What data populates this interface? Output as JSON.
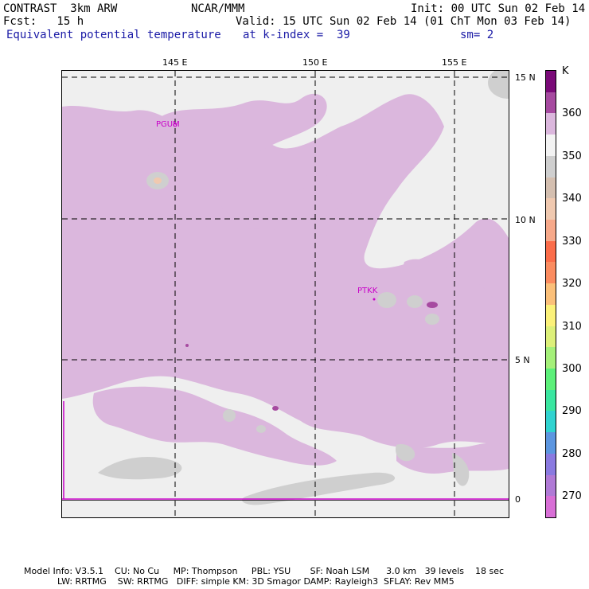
{
  "header": {
    "model": "CONTRAST  3km ARW",
    "fcst": "Fcst:   15 h",
    "org": "NCAR/MMM",
    "init": "Init: 00 UTC Sun 02 Feb 14",
    "valid": "Valid: 15 UTC Sun 02 Feb 14 (01 ChT Mon 03 Feb 14)",
    "field": "Equivalent potential temperature",
    "level": "at k-index =  39",
    "smooth": "sm= 2"
  },
  "map": {
    "lon_labels": [
      "145 E",
      "150 E",
      "155 E"
    ],
    "lat_labels": [
      "15 N",
      "10 N",
      "5 N",
      "0"
    ],
    "stations": [
      "PGUM",
      "PTKK"
    ]
  },
  "colorbar": {
    "unit": "K",
    "levels": [
      "360",
      "350",
      "340",
      "330",
      "320",
      "310",
      "300",
      "290",
      "280",
      "270"
    ],
    "colors": [
      "#7a0a78",
      "#a64aa0",
      "#dbb7dd",
      "#f3f3f3",
      "#cfcfcf",
      "#d4bfb0",
      "#f0c9b0",
      "#f7a98a",
      "#fb6d4a",
      "#fb8c60",
      "#fbc07a",
      "#fbf17a",
      "#ddf07a",
      "#a5f07a",
      "#5cf07a",
      "#3ae6a0",
      "#30d3d0",
      "#5c96e0",
      "#8a7ae0",
      "#b07ad6",
      "#d86fd6"
    ]
  },
  "footer": {
    "line1": "Model Info: V3.5.1    CU: No Cu     MP: Thompson     PBL: YSU       SF: Noah LSM      3.0 km   39 levels    18 sec",
    "line2": "LW: RRTMG    SW: RRTMG   DIFF: simple KM: 3D Smagor DAMP: Rayleigh3  SFLAY: Rev MM5"
  }
}
